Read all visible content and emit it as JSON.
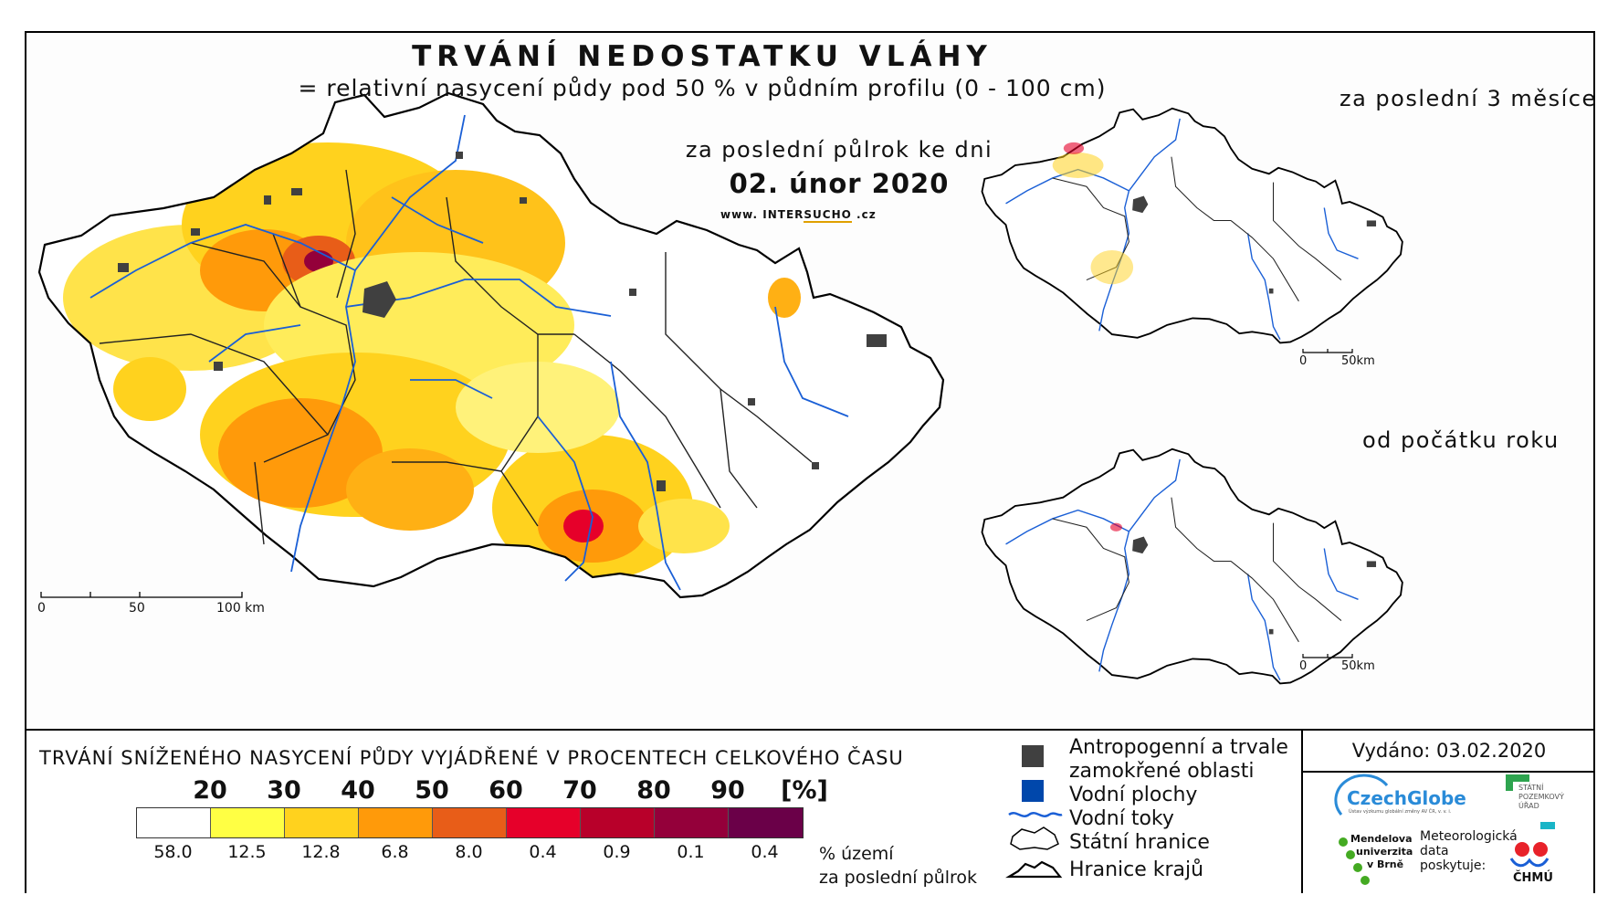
{
  "header": {
    "title": "TRVÁNÍ NEDOSTATKU VLÁHY",
    "subtitle": "= relativní nasycení půdy pod 50 % v půdním profilu (0 - 100 cm)",
    "period_label": "za poslední půlrok ke dni",
    "date": "02. únor 2020",
    "website_prefix": "www.",
    "website_brand_a": "INTER",
    "website_brand_b": "SUCHO",
    "website_suffix": ".cz"
  },
  "main_map": {
    "scale_labels": [
      "0",
      "50",
      "100 km"
    ]
  },
  "insets": [
    {
      "label": "za poslední 3 měsíce",
      "scale_labels": [
        "0",
        "50km"
      ]
    },
    {
      "label": "od počátku roku",
      "scale_labels": [
        "0",
        "50km"
      ]
    }
  ],
  "legend": {
    "title": "TRVÁNÍ SNÍŽENÉHO NASYCENÍ PŮDY VYJÁDŘENÉ V PROCENTECH CELKOVÉHO ČASU",
    "class_breaks": [
      "20",
      "30",
      "40",
      "50",
      "60",
      "70",
      "80",
      "90",
      "[%]"
    ],
    "classes": [
      {
        "color": "#ffffff",
        "share": "58.0"
      },
      {
        "color": "#ffff44",
        "share": "12.5"
      },
      {
        "color": "#ffd21e",
        "share": "12.8"
      },
      {
        "color": "#ff9a0a",
        "share": "6.8"
      },
      {
        "color": "#e85d18",
        "share": "8.0"
      },
      {
        "color": "#e6002a",
        "share": "0.4"
      },
      {
        "color": "#b8002a",
        "share": "0.9"
      },
      {
        "color": "#94003a",
        "share": "0.1"
      },
      {
        "color": "#6a0048",
        "share": "0.4"
      }
    ],
    "share_note_line1": "% území",
    "share_note_line2": "za poslední půlrok",
    "key": {
      "anthropogenic_line1": "Antropogenní a trvale",
      "anthropogenic_line2": "zamokřené oblasti",
      "water_bodies": "Vodní plochy",
      "water_courses": "Vodní toky",
      "state_border": "Státní hranice",
      "region_border": "Hranice krajů"
    },
    "key_colors": {
      "anthropogenic": "#404040",
      "water_bodies": "#0047ab",
      "water_courses": "#1a5fd6"
    }
  },
  "footer": {
    "issued": "Vydáno: 03.02.2020",
    "logo_czechglobe": "CzechGlobe",
    "logo_czechglobe_sub": "Ústav výzkumu globální změny AV ČR, v. v. i.",
    "logo_spu_line1": "STÁTNÍ",
    "logo_spu_line2": "POZEMKOVÝ",
    "logo_spu_line3": "ÚŘAD",
    "logo_mendel_line1": "Mendelova",
    "logo_mendel_line2": "univerzita",
    "logo_mendel_line3": "v Brně",
    "met_data_line1": "Meteorologická",
    "met_data_line2": "data",
    "met_data_line3": "poskytuje:",
    "logo_chmu": "ČHMÚ"
  }
}
